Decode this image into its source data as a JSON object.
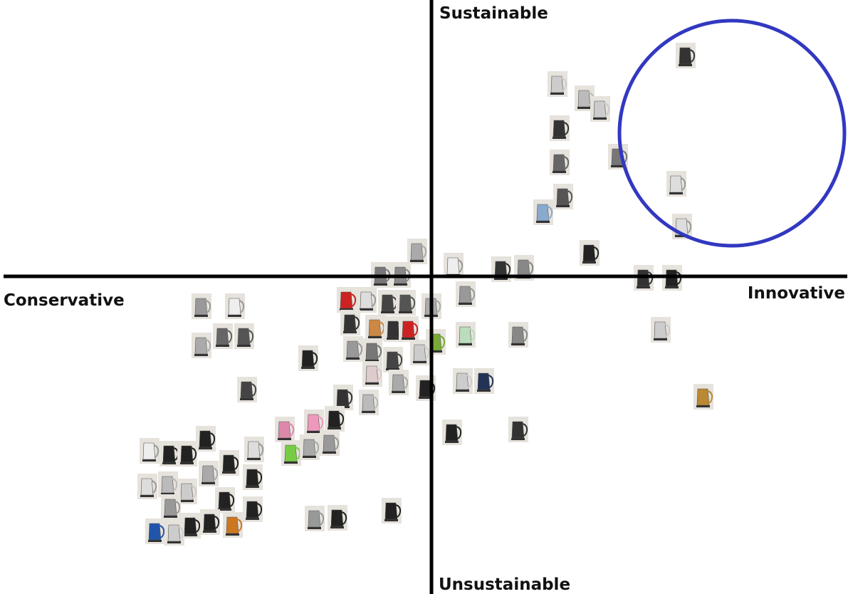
{
  "axes": {
    "top": "Sustainable",
    "bottom": "Unsustainable",
    "left": "Conservative",
    "right": "Innovative"
  }
}
